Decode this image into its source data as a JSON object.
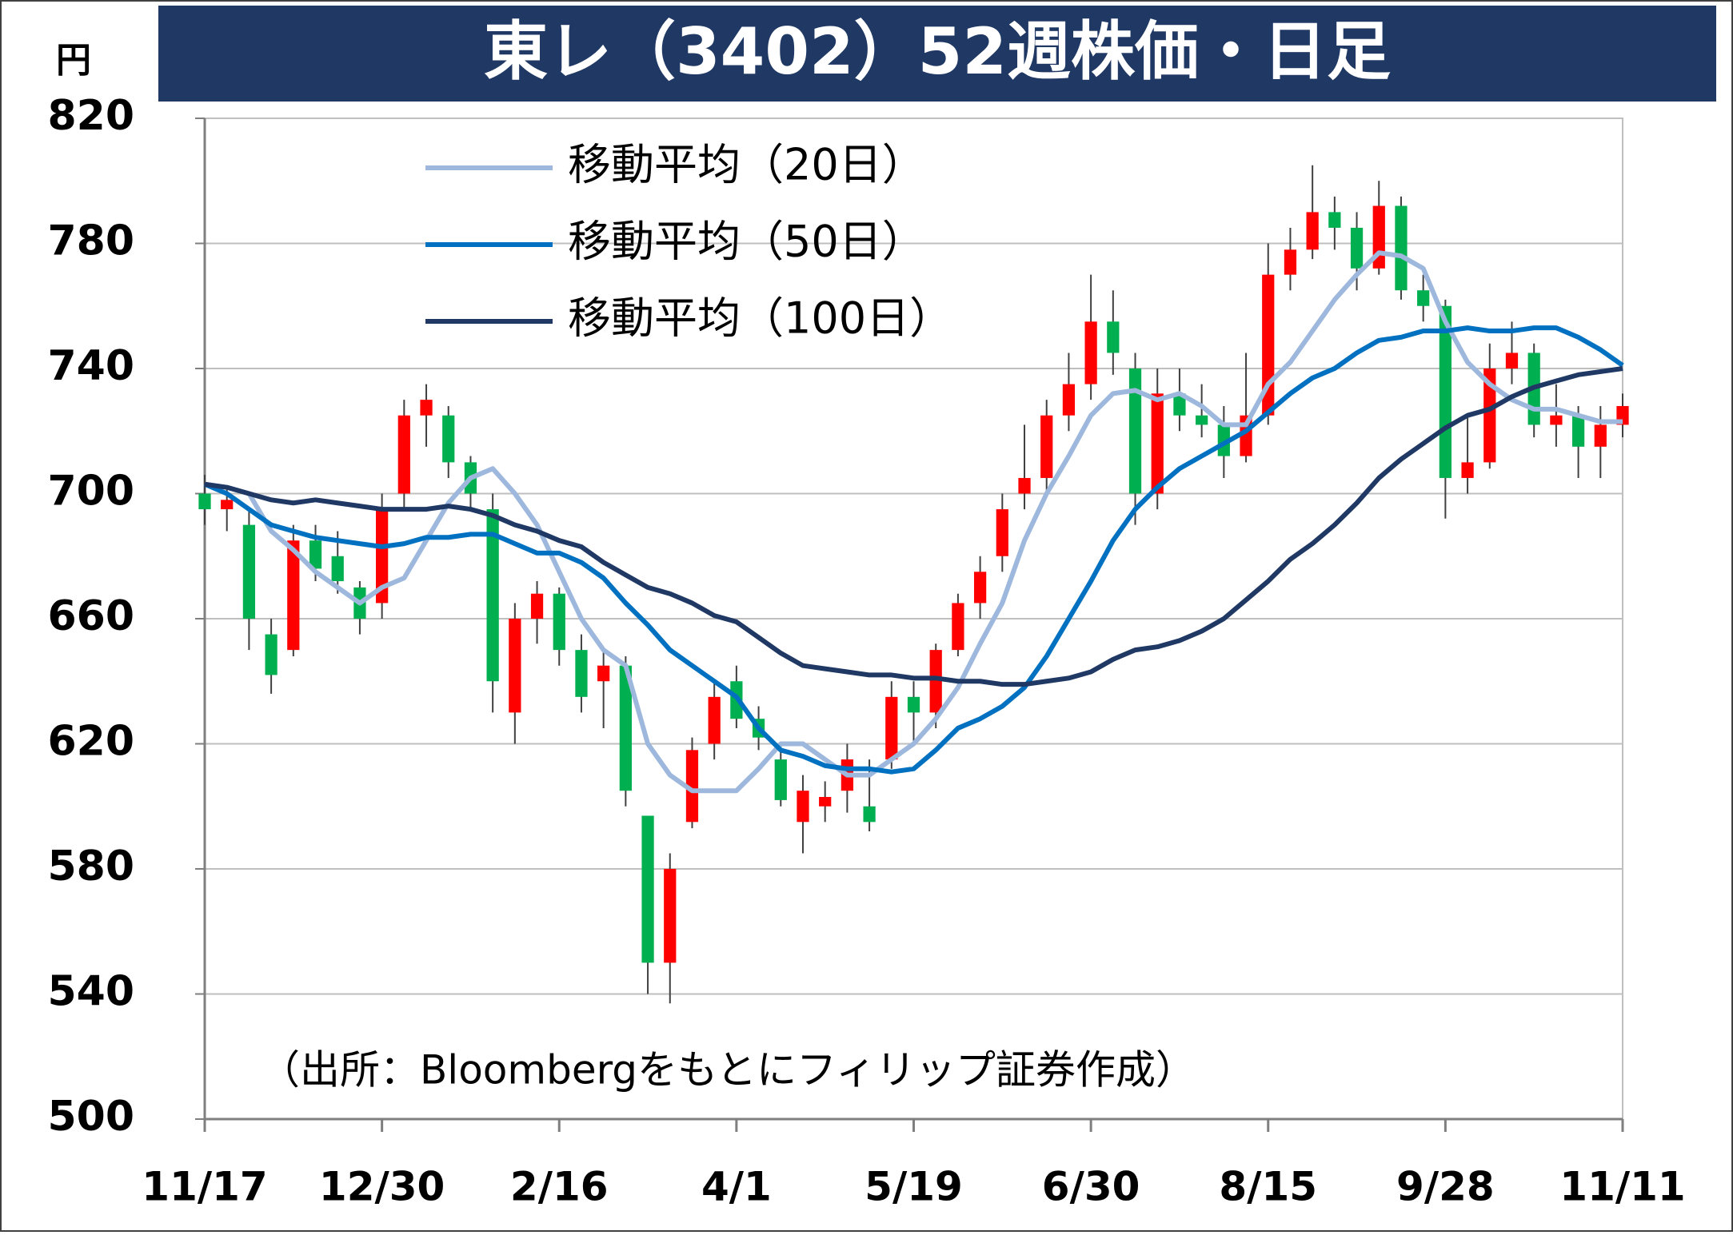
{
  "chart_data": {
    "type": "candlestick",
    "title": "東レ（3402）52週株価・日足",
    "y_unit": "円",
    "source": "（出所：Bloombergをもとにフィリップ証券作成）",
    "categories": [
      "11/17",
      null,
      null,
      null,
      null,
      null,
      null,
      null,
      "12/30",
      null,
      null,
      null,
      null,
      null,
      null,
      null,
      "2/16",
      null,
      null,
      null,
      null,
      null,
      null,
      null,
      "4/1",
      null,
      null,
      null,
      null,
      null,
      null,
      null,
      "5/19",
      null,
      null,
      null,
      null,
      null,
      null,
      null,
      "6/30",
      null,
      null,
      null,
      null,
      null,
      null,
      null,
      "8/15",
      null,
      null,
      null,
      null,
      null,
      null,
      null,
      "9/28",
      null,
      null,
      null,
      null,
      null,
      null,
      null,
      "11/11"
    ],
    "open": [
      700,
      695,
      690,
      655,
      650,
      685,
      680,
      670,
      665,
      700,
      725,
      725,
      710,
      695,
      630,
      660,
      668,
      650,
      640,
      645,
      597,
      550,
      595,
      620,
      640,
      628,
      615,
      595,
      600,
      605,
      600,
      615,
      635,
      630,
      650,
      665,
      680,
      700,
      705,
      725,
      735,
      755,
      740,
      700,
      732,
      725,
      722,
      712,
      725,
      770,
      778,
      790,
      785,
      772,
      792,
      765,
      760,
      705,
      710,
      740,
      745,
      722,
      725,
      715,
      722
    ],
    "high": [
      706,
      702,
      695,
      660,
      690,
      690,
      688,
      672,
      700,
      730,
      735,
      728,
      712,
      700,
      665,
      672,
      670,
      655,
      650,
      648,
      597,
      585,
      622,
      640,
      645,
      632,
      620,
      610,
      608,
      620,
      615,
      640,
      640,
      652,
      668,
      680,
      700,
      722,
      730,
      745,
      770,
      765,
      745,
      740,
      740,
      735,
      728,
      745,
      780,
      785,
      805,
      795,
      790,
      800,
      795,
      770,
      762,
      725,
      748,
      755,
      748,
      735,
      728,
      728,
      732
    ],
    "low": [
      690,
      688,
      650,
      636,
      648,
      672,
      668,
      655,
      660,
      695,
      715,
      705,
      695,
      630,
      620,
      652,
      645,
      630,
      625,
      600,
      540,
      537,
      593,
      615,
      625,
      618,
      600,
      585,
      595,
      598,
      592,
      612,
      620,
      625,
      648,
      660,
      675,
      695,
      700,
      720,
      730,
      738,
      690,
      695,
      720,
      718,
      705,
      710,
      722,
      765,
      775,
      778,
      765,
      770,
      762,
      755,
      692,
      700,
      708,
      735,
      718,
      715,
      705,
      705,
      718
    ],
    "close": [
      695,
      698,
      660,
      642,
      685,
      676,
      672,
      660,
      695,
      725,
      730,
      710,
      700,
      640,
      660,
      668,
      650,
      635,
      645,
      605,
      550,
      580,
      618,
      635,
      628,
      622,
      602,
      605,
      603,
      615,
      595,
      635,
      630,
      650,
      665,
      675,
      695,
      705,
      725,
      735,
      755,
      745,
      700,
      732,
      725,
      722,
      712,
      725,
      770,
      778,
      790,
      785,
      772,
      792,
      765,
      760,
      705,
      710,
      740,
      745,
      722,
      725,
      715,
      722,
      728
    ],
    "up_color": "#ff0000",
    "down_color": "#00b050",
    "series": [
      {
        "name": "移動平均（20日）",
        "color": "#9db8dc",
        "values": [
          703,
          702,
          700,
          688,
          682,
          675,
          670,
          665,
          670,
          673,
          685,
          697,
          705,
          708,
          700,
          690,
          675,
          660,
          650,
          645,
          620,
          610,
          605,
          605,
          605,
          612,
          620,
          620,
          615,
          610,
          610,
          615,
          620,
          628,
          638,
          652,
          665,
          685,
          700,
          712,
          725,
          732,
          733,
          730,
          732,
          728,
          722,
          722,
          735,
          742,
          752,
          762,
          770,
          777,
          776,
          772,
          755,
          742,
          735,
          730,
          727,
          727,
          725,
          723,
          723
        ]
      },
      {
        "name": "移動平均（50日）",
        "color": "#0070c0",
        "values": [
          703,
          700,
          695,
          690,
          688,
          686,
          685,
          684,
          683,
          684,
          686,
          686,
          687,
          687,
          684,
          681,
          681,
          678,
          673,
          665,
          658,
          650,
          645,
          640,
          635,
          625,
          618,
          616,
          613,
          612,
          612,
          611,
          612,
          618,
          625,
          628,
          632,
          638,
          648,
          660,
          672,
          685,
          695,
          702,
          708,
          712,
          716,
          720,
          726,
          732,
          737,
          740,
          745,
          749,
          750,
          752,
          752,
          753,
          752,
          752,
          753,
          753,
          750,
          746,
          741
        ]
      },
      {
        "name": "移動平均（100日）",
        "color": "#1f3864",
        "values": [
          703,
          702,
          700,
          698,
          697,
          698,
          697,
          696,
          695,
          695,
          695,
          696,
          695,
          693,
          690,
          688,
          685,
          683,
          678,
          674,
          670,
          668,
          665,
          661,
          659,
          654,
          649,
          645,
          644,
          643,
          642,
          642,
          641,
          641,
          640,
          640,
          639,
          639,
          640,
          641,
          643,
          647,
          650,
          651,
          653,
          656,
          660,
          666,
          672,
          679,
          684,
          690,
          697,
          705,
          711,
          716,
          721,
          725,
          727,
          731,
          734,
          736,
          738,
          739,
          740
        ]
      }
    ],
    "ylim": [
      500,
      820
    ],
    "yticks": [
      500,
      540,
      580,
      620,
      660,
      700,
      740,
      780,
      820
    ],
    "grid": true
  }
}
